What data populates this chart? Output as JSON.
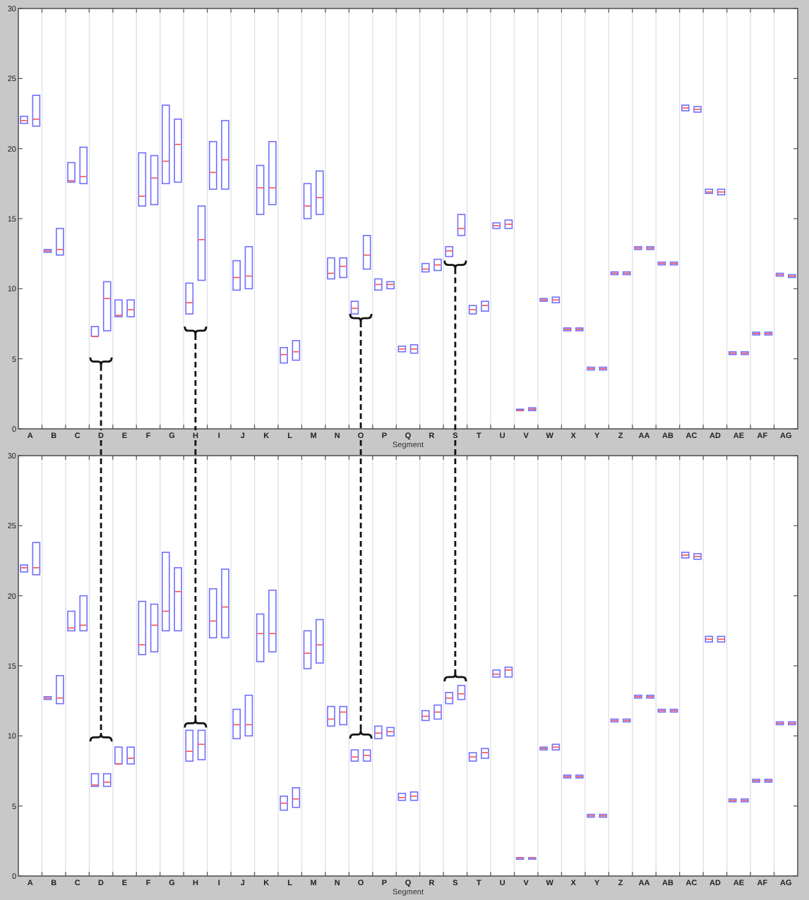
{
  "chart_data": [
    {
      "type": "box",
      "xlabel": "Segment",
      "categories": [
        "A",
        "B",
        "C",
        "D",
        "E",
        "F",
        "G",
        "H",
        "I",
        "J",
        "K",
        "L",
        "M",
        "N",
        "O",
        "P",
        "Q",
        "R",
        "S",
        "T",
        "U",
        "V",
        "W",
        "X",
        "Y",
        "Z",
        "AA",
        "AB",
        "AC",
        "AD",
        "AE",
        "AF",
        "AG"
      ],
      "ylim": [
        0,
        30
      ],
      "yticks": [
        0,
        5,
        10,
        15,
        20,
        25,
        30
      ],
      "grid": "x",
      "series": [
        {
          "color": "#6f6fff",
          "boxes": [
            {
              "low": 21.8,
              "q1": 21.8,
              "median": 22.0,
              "q3": 22.3,
              "high": 22.3
            },
            {
              "low": 12.6,
              "q1": 12.6,
              "median": 12.7,
              "q3": 12.8,
              "high": 12.8
            },
            {
              "low": 17.6,
              "q1": 17.6,
              "median": 17.7,
              "q3": 19.0,
              "high": 19.0
            },
            {
              "low": 6.6,
              "q1": 6.6,
              "median": 6.6,
              "q3": 7.3,
              "high": 7.3
            },
            {
              "low": 8.0,
              "q1": 8.0,
              "median": 8.1,
              "q3": 9.2,
              "high": 9.2
            },
            {
              "low": 15.9,
              "q1": 15.9,
              "median": 16.6,
              "q3": 19.7,
              "high": 19.7
            },
            {
              "low": 17.5,
              "q1": 17.5,
              "median": 19.1,
              "q3": 23.1,
              "high": 23.1
            },
            {
              "low": 8.2,
              "q1": 8.2,
              "median": 9.0,
              "q3": 10.4,
              "high": 10.4
            },
            {
              "low": 17.1,
              "q1": 17.1,
              "median": 18.3,
              "q3": 20.5,
              "high": 20.5
            },
            {
              "low": 9.9,
              "q1": 9.9,
              "median": 10.8,
              "q3": 12.0,
              "high": 12.0
            },
            {
              "low": 15.3,
              "q1": 15.3,
              "median": 17.2,
              "q3": 18.8,
              "high": 18.8
            },
            {
              "low": 4.7,
              "q1": 4.7,
              "median": 5.3,
              "q3": 5.8,
              "high": 5.8
            },
            {
              "low": 15.0,
              "q1": 15.0,
              "median": 15.9,
              "q3": 17.5,
              "high": 17.5
            },
            {
              "low": 10.7,
              "q1": 10.7,
              "median": 11.1,
              "q3": 12.2,
              "high": 12.2
            },
            {
              "low": 8.2,
              "q1": 8.2,
              "median": 8.6,
              "q3": 9.1,
              "high": 9.1
            },
            {
              "low": 9.9,
              "q1": 9.9,
              "median": 10.3,
              "q3": 10.7,
              "high": 10.7
            },
            {
              "low": 5.5,
              "q1": 5.5,
              "median": 5.7,
              "q3": 5.9,
              "high": 5.9
            },
            {
              "low": 11.2,
              "q1": 11.2,
              "median": 11.4,
              "q3": 11.8,
              "high": 11.8
            },
            {
              "low": 12.3,
              "q1": 12.3,
              "median": 12.7,
              "q3": 13.0,
              "high": 13.0
            },
            {
              "low": 8.2,
              "q1": 8.2,
              "median": 8.5,
              "q3": 8.8,
              "high": 8.8
            },
            {
              "low": 14.3,
              "q1": 14.3,
              "median": 14.5,
              "q3": 14.7,
              "high": 14.7
            },
            {
              "low": 1.3,
              "q1": 1.3,
              "median": 1.3,
              "q3": 1.4,
              "high": 1.4
            },
            {
              "low": 9.1,
              "q1": 9.1,
              "median": 9.2,
              "q3": 9.3,
              "high": 9.3
            },
            {
              "low": 7.0,
              "q1": 7.0,
              "median": 7.1,
              "q3": 7.2,
              "high": 7.2
            },
            {
              "low": 4.2,
              "q1": 4.2,
              "median": 4.3,
              "q3": 4.4,
              "high": 4.4
            },
            {
              "low": 11.0,
              "q1": 11.0,
              "median": 11.1,
              "q3": 11.2,
              "high": 11.2
            },
            {
              "low": 12.8,
              "q1": 12.8,
              "median": 12.9,
              "q3": 13.0,
              "high": 13.0
            },
            {
              "low": 11.7,
              "q1": 11.7,
              "median": 11.8,
              "q3": 11.9,
              "high": 11.9
            },
            {
              "low": 22.7,
              "q1": 22.7,
              "median": 22.9,
              "q3": 23.1,
              "high": 23.1
            },
            {
              "low": 16.8,
              "q1": 16.8,
              "median": 16.9,
              "q3": 17.1,
              "high": 17.1
            },
            {
              "low": 5.3,
              "q1": 5.3,
              "median": 5.4,
              "q3": 5.5,
              "high": 5.5
            },
            {
              "low": 6.7,
              "q1": 6.7,
              "median": 6.8,
              "q3": 6.9,
              "high": 6.9
            },
            {
              "low": 10.9,
              "q1": 10.9,
              "median": 11.0,
              "q3": 11.1,
              "high": 11.1
            }
          ]
        },
        {
          "color": "#6f6fff",
          "boxes": [
            {
              "low": 21.6,
              "q1": 21.6,
              "median": 22.1,
              "q3": 23.8,
              "high": 23.8
            },
            {
              "low": 12.4,
              "q1": 12.4,
              "median": 12.8,
              "q3": 14.3,
              "high": 14.3
            },
            {
              "low": 17.5,
              "q1": 17.5,
              "median": 18.0,
              "q3": 20.1,
              "high": 20.1
            },
            {
              "low": 7.0,
              "q1": 7.0,
              "median": 9.3,
              "q3": 10.5,
              "high": 10.5
            },
            {
              "low": 8.0,
              "q1": 8.0,
              "median": 8.5,
              "q3": 9.2,
              "high": 9.2
            },
            {
              "low": 16.0,
              "q1": 16.0,
              "median": 17.9,
              "q3": 19.5,
              "high": 19.5
            },
            {
              "low": 17.6,
              "q1": 17.6,
              "median": 20.3,
              "q3": 22.1,
              "high": 22.1
            },
            {
              "low": 10.6,
              "q1": 10.6,
              "median": 13.5,
              "q3": 15.9,
              "high": 15.9
            },
            {
              "low": 17.1,
              "q1": 17.1,
              "median": 19.2,
              "q3": 22.0,
              "high": 22.0
            },
            {
              "low": 10.0,
              "q1": 10.0,
              "median": 10.9,
              "q3": 13.0,
              "high": 13.0
            },
            {
              "low": 16.0,
              "q1": 16.0,
              "median": 17.2,
              "q3": 20.5,
              "high": 20.5
            },
            {
              "low": 4.9,
              "q1": 4.9,
              "median": 5.5,
              "q3": 6.3,
              "high": 6.3
            },
            {
              "low": 15.3,
              "q1": 15.3,
              "median": 16.5,
              "q3": 18.4,
              "high": 18.4
            },
            {
              "low": 10.8,
              "q1": 10.8,
              "median": 11.6,
              "q3": 12.2,
              "high": 12.2
            },
            {
              "low": 11.4,
              "q1": 11.4,
              "median": 12.4,
              "q3": 13.8,
              "high": 13.8
            },
            {
              "low": 10.0,
              "q1": 10.0,
              "median": 10.3,
              "q3": 10.5,
              "high": 10.5
            },
            {
              "low": 5.4,
              "q1": 5.4,
              "median": 5.7,
              "q3": 6.0,
              "high": 6.0
            },
            {
              "low": 11.3,
              "q1": 11.3,
              "median": 11.7,
              "q3": 12.1,
              "high": 12.1
            },
            {
              "low": 13.8,
              "q1": 13.8,
              "median": 14.3,
              "q3": 15.3,
              "high": 15.3
            },
            {
              "low": 8.4,
              "q1": 8.4,
              "median": 8.8,
              "q3": 9.1,
              "high": 9.1
            },
            {
              "low": 14.3,
              "q1": 14.3,
              "median": 14.6,
              "q3": 14.9,
              "high": 14.9
            },
            {
              "low": 1.3,
              "q1": 1.3,
              "median": 1.4,
              "q3": 1.5,
              "high": 1.5
            },
            {
              "low": 9.0,
              "q1": 9.0,
              "median": 9.2,
              "q3": 9.4,
              "high": 9.4
            },
            {
              "low": 7.0,
              "q1": 7.0,
              "median": 7.1,
              "q3": 7.2,
              "high": 7.2
            },
            {
              "low": 4.2,
              "q1": 4.2,
              "median": 4.3,
              "q3": 4.4,
              "high": 4.4
            },
            {
              "low": 11.0,
              "q1": 11.0,
              "median": 11.1,
              "q3": 11.2,
              "high": 11.2
            },
            {
              "low": 12.8,
              "q1": 12.8,
              "median": 12.9,
              "q3": 13.0,
              "high": 13.0
            },
            {
              "low": 11.7,
              "q1": 11.7,
              "median": 11.8,
              "q3": 11.9,
              "high": 11.9
            },
            {
              "low": 22.6,
              "q1": 22.6,
              "median": 22.8,
              "q3": 23.0,
              "high": 23.0
            },
            {
              "low": 16.7,
              "q1": 16.7,
              "median": 16.9,
              "q3": 17.1,
              "high": 17.1
            },
            {
              "low": 5.3,
              "q1": 5.3,
              "median": 5.4,
              "q3": 5.5,
              "high": 5.5
            },
            {
              "low": 6.7,
              "q1": 6.7,
              "median": 6.8,
              "q3": 6.9,
              "high": 6.9
            },
            {
              "low": 10.8,
              "q1": 10.8,
              "median": 10.9,
              "q3": 11.0,
              "high": 11.0
            }
          ]
        }
      ]
    },
    {
      "type": "box",
      "xlabel": "Segment",
      "categories": [
        "A",
        "B",
        "C",
        "D",
        "E",
        "F",
        "G",
        "H",
        "I",
        "J",
        "K",
        "L",
        "M",
        "N",
        "O",
        "P",
        "Q",
        "R",
        "S",
        "T",
        "U",
        "V",
        "W",
        "X",
        "Y",
        "Z",
        "AA",
        "AB",
        "AC",
        "AD",
        "AE",
        "AF",
        "AG"
      ],
      "ylim": [
        0,
        30
      ],
      "yticks": [
        0,
        5,
        10,
        15,
        20,
        25,
        30
      ],
      "grid": "x",
      "series": [
        {
          "color": "#6f6fff",
          "boxes": [
            {
              "low": 21.7,
              "q1": 21.7,
              "median": 22.0,
              "q3": 22.2,
              "high": 22.2
            },
            {
              "low": 12.6,
              "q1": 12.6,
              "median": 12.7,
              "q3": 12.8,
              "high": 12.8
            },
            {
              "low": 17.5,
              "q1": 17.5,
              "median": 17.7,
              "q3": 18.9,
              "high": 18.9
            },
            {
              "low": 6.4,
              "q1": 6.4,
              "median": 6.5,
              "q3": 7.3,
              "high": 7.3
            },
            {
              "low": 8.0,
              "q1": 8.0,
              "median": 8.0,
              "q3": 9.2,
              "high": 9.2
            },
            {
              "low": 15.8,
              "q1": 15.8,
              "median": 16.5,
              "q3": 19.6,
              "high": 19.6
            },
            {
              "low": 17.5,
              "q1": 17.5,
              "median": 18.9,
              "q3": 23.1,
              "high": 23.1
            },
            {
              "low": 8.2,
              "q1": 8.2,
              "median": 8.9,
              "q3": 10.4,
              "high": 10.4
            },
            {
              "low": 17.0,
              "q1": 17.0,
              "median": 18.2,
              "q3": 20.5,
              "high": 20.5
            },
            {
              "low": 9.8,
              "q1": 9.8,
              "median": 10.8,
              "q3": 11.9,
              "high": 11.9
            },
            {
              "low": 15.3,
              "q1": 15.3,
              "median": 17.3,
              "q3": 18.7,
              "high": 18.7
            },
            {
              "low": 4.7,
              "q1": 4.7,
              "median": 5.2,
              "q3": 5.7,
              "high": 5.7
            },
            {
              "low": 14.8,
              "q1": 14.8,
              "median": 15.9,
              "q3": 17.5,
              "high": 17.5
            },
            {
              "low": 10.7,
              "q1": 10.7,
              "median": 11.2,
              "q3": 12.1,
              "high": 12.1
            },
            {
              "low": 8.2,
              "q1": 8.2,
              "median": 8.5,
              "q3": 9.0,
              "high": 9.0
            },
            {
              "low": 9.8,
              "q1": 9.8,
              "median": 10.2,
              "q3": 10.7,
              "high": 10.7
            },
            {
              "low": 5.4,
              "q1": 5.4,
              "median": 5.6,
              "q3": 5.9,
              "high": 5.9
            },
            {
              "low": 11.1,
              "q1": 11.1,
              "median": 11.4,
              "q3": 11.8,
              "high": 11.8
            },
            {
              "low": 12.3,
              "q1": 12.3,
              "median": 12.7,
              "q3": 13.1,
              "high": 13.1
            },
            {
              "low": 8.2,
              "q1": 8.2,
              "median": 8.5,
              "q3": 8.8,
              "high": 8.8
            },
            {
              "low": 14.2,
              "q1": 14.2,
              "median": 14.4,
              "q3": 14.7,
              "high": 14.7
            },
            {
              "low": 1.2,
              "q1": 1.2,
              "median": 1.3,
              "q3": 1.3,
              "high": 1.3
            },
            {
              "low": 9.0,
              "q1": 9.0,
              "median": 9.1,
              "q3": 9.2,
              "high": 9.2
            },
            {
              "low": 7.0,
              "q1": 7.0,
              "median": 7.1,
              "q3": 7.2,
              "high": 7.2
            },
            {
              "low": 4.2,
              "q1": 4.2,
              "median": 4.3,
              "q3": 4.4,
              "high": 4.4
            },
            {
              "low": 11.0,
              "q1": 11.0,
              "median": 11.1,
              "q3": 11.2,
              "high": 11.2
            },
            {
              "low": 12.7,
              "q1": 12.7,
              "median": 12.8,
              "q3": 12.9,
              "high": 12.9
            },
            {
              "low": 11.7,
              "q1": 11.7,
              "median": 11.8,
              "q3": 11.9,
              "high": 11.9
            },
            {
              "low": 22.7,
              "q1": 22.7,
              "median": 22.9,
              "q3": 23.1,
              "high": 23.1
            },
            {
              "low": 16.7,
              "q1": 16.7,
              "median": 16.9,
              "q3": 17.1,
              "high": 17.1
            },
            {
              "low": 5.3,
              "q1": 5.3,
              "median": 5.4,
              "q3": 5.5,
              "high": 5.5
            },
            {
              "low": 6.7,
              "q1": 6.7,
              "median": 6.8,
              "q3": 6.9,
              "high": 6.9
            },
            {
              "low": 10.8,
              "q1": 10.8,
              "median": 10.9,
              "q3": 11.0,
              "high": 11.0
            }
          ]
        },
        {
          "color": "#6f6fff",
          "boxes": [
            {
              "low": 21.5,
              "q1": 21.5,
              "median": 22.0,
              "q3": 23.8,
              "high": 23.8
            },
            {
              "low": 12.3,
              "q1": 12.3,
              "median": 12.7,
              "q3": 14.3,
              "high": 14.3
            },
            {
              "low": 17.5,
              "q1": 17.5,
              "median": 17.9,
              "q3": 20.0,
              "high": 20.0
            },
            {
              "low": 6.4,
              "q1": 6.4,
              "median": 6.7,
              "q3": 7.3,
              "high": 7.3
            },
            {
              "low": 8.0,
              "q1": 8.0,
              "median": 8.4,
              "q3": 9.2,
              "high": 9.2
            },
            {
              "low": 16.0,
              "q1": 16.0,
              "median": 17.9,
              "q3": 19.4,
              "high": 19.4
            },
            {
              "low": 17.5,
              "q1": 17.5,
              "median": 20.3,
              "q3": 22.0,
              "high": 22.0
            },
            {
              "low": 8.3,
              "q1": 8.3,
              "median": 9.4,
              "q3": 10.4,
              "high": 10.4
            },
            {
              "low": 17.0,
              "q1": 17.0,
              "median": 19.2,
              "q3": 21.9,
              "high": 21.9
            },
            {
              "low": 10.0,
              "q1": 10.0,
              "median": 10.8,
              "q3": 12.9,
              "high": 12.9
            },
            {
              "low": 16.0,
              "q1": 16.0,
              "median": 17.3,
              "q3": 20.4,
              "high": 20.4
            },
            {
              "low": 4.9,
              "q1": 4.9,
              "median": 5.5,
              "q3": 6.3,
              "high": 6.3
            },
            {
              "low": 15.2,
              "q1": 15.2,
              "median": 16.5,
              "q3": 18.3,
              "high": 18.3
            },
            {
              "low": 10.8,
              "q1": 10.8,
              "median": 11.7,
              "q3": 12.1,
              "high": 12.1
            },
            {
              "low": 8.2,
              "q1": 8.2,
              "median": 8.6,
              "q3": 9.0,
              "high": 9.0
            },
            {
              "low": 10.0,
              "q1": 10.0,
              "median": 10.3,
              "q3": 10.6,
              "high": 10.6
            },
            {
              "low": 5.4,
              "q1": 5.4,
              "median": 5.7,
              "q3": 6.0,
              "high": 6.0
            },
            {
              "low": 11.2,
              "q1": 11.2,
              "median": 11.7,
              "q3": 12.2,
              "high": 12.2
            },
            {
              "low": 12.6,
              "q1": 12.6,
              "median": 13.0,
              "q3": 13.6,
              "high": 13.6
            },
            {
              "low": 8.4,
              "q1": 8.4,
              "median": 8.8,
              "q3": 9.1,
              "high": 9.1
            },
            {
              "low": 14.2,
              "q1": 14.2,
              "median": 14.7,
              "q3": 14.9,
              "high": 14.9
            },
            {
              "low": 1.2,
              "q1": 1.2,
              "median": 1.3,
              "q3": 1.3,
              "high": 1.3
            },
            {
              "low": 9.0,
              "q1": 9.0,
              "median": 9.2,
              "q3": 9.4,
              "high": 9.4
            },
            {
              "low": 7.0,
              "q1": 7.0,
              "median": 7.1,
              "q3": 7.2,
              "high": 7.2
            },
            {
              "low": 4.2,
              "q1": 4.2,
              "median": 4.3,
              "q3": 4.4,
              "high": 4.4
            },
            {
              "low": 11.0,
              "q1": 11.0,
              "median": 11.1,
              "q3": 11.2,
              "high": 11.2
            },
            {
              "low": 12.7,
              "q1": 12.7,
              "median": 12.8,
              "q3": 12.9,
              "high": 12.9
            },
            {
              "low": 11.7,
              "q1": 11.7,
              "median": 11.8,
              "q3": 11.9,
              "high": 11.9
            },
            {
              "low": 22.6,
              "q1": 22.6,
              "median": 22.8,
              "q3": 23.0,
              "high": 23.0
            },
            {
              "low": 16.7,
              "q1": 16.7,
              "median": 16.9,
              "q3": 17.1,
              "high": 17.1
            },
            {
              "low": 5.3,
              "q1": 5.3,
              "median": 5.4,
              "q3": 5.5,
              "high": 5.5
            },
            {
              "low": 6.7,
              "q1": 6.7,
              "median": 6.8,
              "q3": 6.9,
              "high": 6.9
            },
            {
              "low": 10.8,
              "q1": 10.8,
              "median": 10.9,
              "q3": 11.0,
              "high": 11.0
            }
          ]
        }
      ]
    }
  ]
}
